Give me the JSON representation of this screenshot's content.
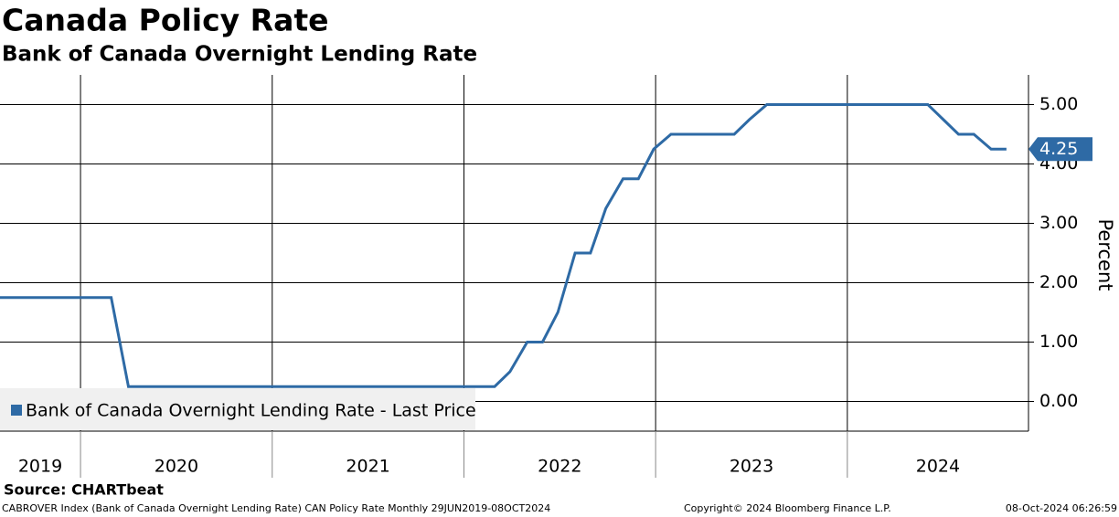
{
  "chart_data": {
    "type": "line",
    "title": "Canada Policy Rate",
    "subtitle": "Bank of Canada Overnight Lending Rate",
    "y_label": "Percent",
    "source": "Source: CHARTbeat",
    "footer_left": "CABROVER Index (Bank of Canada Overnight Lending Rate) CAN Policy Rate  Monthly 29JUN2019-08OCT2024",
    "footer_center": "Copyright© 2024 Bloomberg Finance L.P.",
    "footer_right": "08-Oct-2024 06:26:59",
    "x": [
      2019.58,
      2020.16,
      2020.25,
      2022.16,
      2022.24,
      2022.33,
      2022.41,
      2022.49,
      2022.58,
      2022.66,
      2022.74,
      2022.83,
      2022.91,
      2022.99,
      2023.08,
      2023.41,
      2023.49,
      2023.58,
      2024.42,
      2024.5,
      2024.58,
      2024.66,
      2024.75,
      2024.83
    ],
    "series": [
      {
        "name": "Bank of Canada Overnight Lending Rate - Last Price",
        "color": "#2e6aa5",
        "values": [
          1.75,
          1.75,
          0.25,
          0.25,
          0.5,
          1.0,
          1.0,
          1.5,
          2.5,
          2.5,
          3.25,
          3.75,
          3.75,
          4.25,
          4.5,
          4.5,
          4.75,
          5.0,
          5.0,
          4.75,
          4.5,
          4.5,
          4.25,
          4.25
        ],
        "last_price_label": "4.25"
      }
    ],
    "xlim": [
      2019.58,
      2024.945
    ],
    "xticks": [
      2020,
      2021,
      2022,
      2023,
      2024
    ],
    "xlabels": [
      2019,
      2020,
      2021,
      2022,
      2023,
      2024
    ],
    "ylim": [
      -0.5,
      5.5
    ],
    "yticks": [
      {
        "value": 0,
        "label": "0.00"
      },
      {
        "value": 1,
        "label": "1.00"
      },
      {
        "value": 2,
        "label": "2.00"
      },
      {
        "value": 3,
        "label": "3.00"
      },
      {
        "value": 4,
        "label": "4.00"
      },
      {
        "value": 5,
        "label": "5.00"
      }
    ],
    "grid": true
  }
}
